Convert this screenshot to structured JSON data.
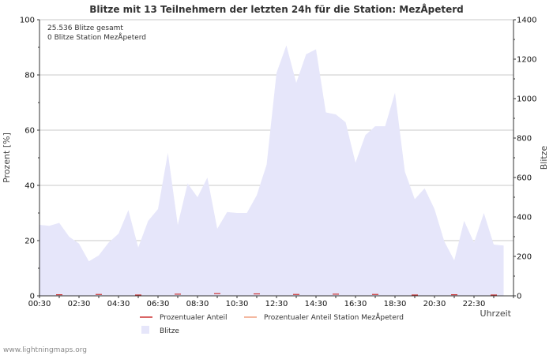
{
  "chart_data": {
    "type": "area",
    "title": "Blitze mit 13 Teilnehmern der letzten 24h für die Station: MezÅ\u001fpeterd",
    "info": {
      "total": "25.536 Blitze gesamt",
      "station": "0 Blitze Station MezÅ\u001fpeterd"
    },
    "xlabel": "Uhrzeit",
    "ylabel_left": "Prozent   [%]",
    "ylabel_right": "Blitze",
    "x_tick_labels": [
      "00:30",
      "02:30",
      "04:30",
      "06:30",
      "08:30",
      "10:30",
      "12:30",
      "14:30",
      "16:30",
      "18:30",
      "20:30",
      "22:30"
    ],
    "y_left_ticks": [
      "0",
      "20",
      "40",
      "60",
      "80",
      "100"
    ],
    "y_left_range": [
      0,
      100
    ],
    "y_right_ticks": [
      "0",
      "200",
      "400",
      "600",
      "800",
      "1000",
      "1200",
      "1400"
    ],
    "y_right_range": [
      0,
      1400
    ],
    "series": [
      {
        "name": "Blitze",
        "color": "#e6e6fa",
        "x_hours": [
          0,
          0.5,
          1,
          1.5,
          2,
          2.5,
          3,
          3.5,
          4,
          4.5,
          5,
          5.5,
          6,
          6.5,
          7,
          7.5,
          8,
          8.5,
          9,
          9.5,
          10,
          10.5,
          11,
          11.5,
          12,
          12.5,
          13,
          13.5,
          14,
          14.5,
          15,
          15.5,
          16,
          16.5,
          17,
          17.5,
          18,
          18.5,
          19,
          19.5,
          20,
          20.5,
          21,
          21.5,
          22,
          22.5,
          23,
          23.5
        ],
        "values": [
          360,
          355,
          370,
          300,
          265,
          175,
          205,
          270,
          315,
          435,
          245,
          380,
          440,
          725,
          360,
          570,
          500,
          600,
          340,
          425,
          420,
          420,
          510,
          665,
          1130,
          1270,
          1080,
          1225,
          1250,
          930,
          920,
          880,
          675,
          815,
          860,
          860,
          1030,
          630,
          490,
          545,
          440,
          275,
          180,
          380,
          270,
          420,
          260,
          255
        ]
      },
      {
        "name": "Prozentualer Anteil",
        "color": "#cc3333",
        "values_percent": [
          0.4,
          0.5,
          0.3,
          0.6,
          0.8,
          0.7,
          0.5,
          0.6,
          0.5,
          0.3,
          0.4,
          0.3
        ]
      },
      {
        "name": "Prozentualer Anteil Station MezÅ\u001fpeterd",
        "color": "#f0a080",
        "values_percent": [
          0,
          0,
          0,
          0,
          0,
          0,
          0,
          0,
          0,
          0,
          0,
          0
        ]
      }
    ]
  },
  "legend": {
    "item1": "Prozentualer Anteil",
    "item2": "Prozentualer Anteil Station MezÅ\u001fpeterd",
    "item3": "Blitze"
  },
  "footer": "www.lightningmaps.org"
}
